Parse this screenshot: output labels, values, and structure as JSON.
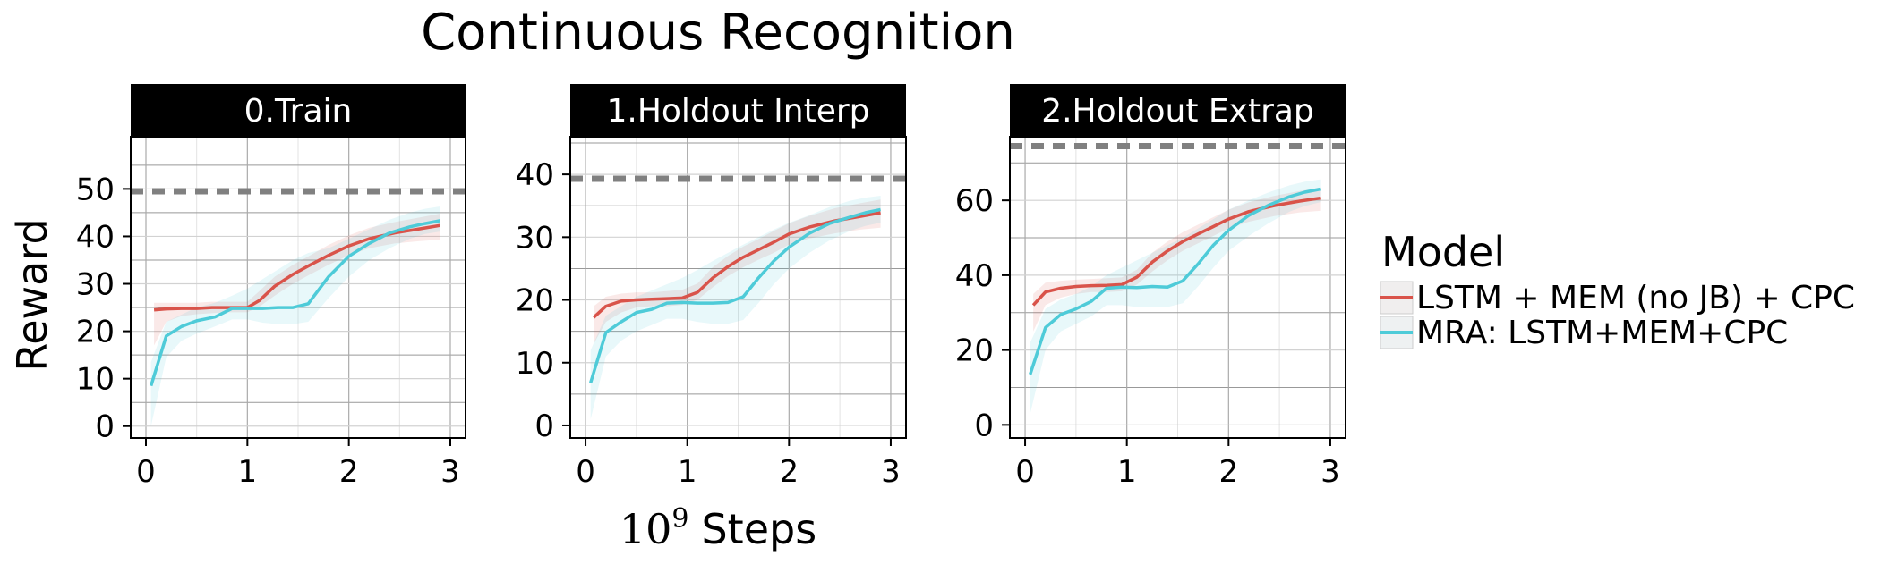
{
  "title": "Continuous Recognition",
  "xlabel_base": "10",
  "xlabel_exp": "9",
  "xlabel_rest": "Steps",
  "ylabel": "Reward",
  "legend": {
    "title": "Model",
    "entries": [
      {
        "label": "LSTM + MEM (no JB) + CPC",
        "color": "#d9534a"
      },
      {
        "label": "MRA: LSTM+MEM+CPC",
        "color": "#4ecbd8"
      }
    ]
  },
  "chart_data": [
    {
      "type": "line",
      "panel_title": "0.Train",
      "xlim": [
        -0.15,
        3.15
      ],
      "ylim": [
        -2.5,
        61
      ],
      "xticks": [
        0,
        1,
        2,
        3
      ],
      "yticks": [
        0,
        10,
        20,
        30,
        40,
        50
      ],
      "reference_line": 49.5,
      "series": [
        {
          "name": "LSTM + MEM (no JB) + CPC",
          "x": [
            0.08,
            0.2,
            0.35,
            0.5,
            0.65,
            0.8,
            1.0,
            1.12,
            1.27,
            1.45,
            1.62,
            1.8,
            2.0,
            2.2,
            2.45,
            2.7,
            2.9
          ],
          "y": [
            24.5,
            24.7,
            24.8,
            24.8,
            25.0,
            25.0,
            25.0,
            26.5,
            29.5,
            32.0,
            34.0,
            36.0,
            38.0,
            39.5,
            40.7,
            41.6,
            42.3
          ],
          "lower": [
            17,
            22,
            23.2,
            23.6,
            23.8,
            24,
            24,
            25.2,
            27.5,
            30,
            32,
            34,
            36,
            37.5,
            38.5,
            39,
            39.3
          ],
          "upper": [
            26,
            26,
            26,
            26,
            26.2,
            26.2,
            26.2,
            28.5,
            31.5,
            34,
            36,
            38.2,
            40.2,
            41.8,
            43,
            44,
            44.8
          ]
        },
        {
          "name": "MRA: LSTM+MEM+CPC",
          "x": [
            0.05,
            0.2,
            0.35,
            0.5,
            0.68,
            0.85,
            1.0,
            1.15,
            1.3,
            1.45,
            1.6,
            1.8,
            2.0,
            2.2,
            2.4,
            2.6,
            2.75,
            2.9
          ],
          "y": [
            8.5,
            19.0,
            21.0,
            22.2,
            23.0,
            24.8,
            24.8,
            24.8,
            25.0,
            25.0,
            25.8,
            31.5,
            35.8,
            38.5,
            40.7,
            42.0,
            42.7,
            43.3
          ],
          "lower": [
            0,
            14.5,
            18,
            19.5,
            21,
            22.5,
            22.5,
            21.8,
            21.5,
            21.5,
            22,
            27,
            31.5,
            35,
            37.5,
            39.5,
            40.5,
            41
          ],
          "upper": [
            13.5,
            22,
            23.5,
            25,
            26,
            27.5,
            29,
            31,
            33,
            35,
            36.5,
            37.5,
            39.5,
            41.5,
            43.5,
            45,
            45.8,
            46.3
          ]
        }
      ]
    },
    {
      "type": "line",
      "panel_title": "1.Holdout Interp",
      "xlim": [
        -0.15,
        3.15
      ],
      "ylim": [
        -2,
        46
      ],
      "xticks": [
        0,
        1,
        2,
        3
      ],
      "yticks": [
        0,
        10,
        20,
        30,
        40
      ],
      "reference_line": 39.3,
      "series": [
        {
          "name": "LSTM + MEM (no JB) + CPC",
          "x": [
            0.08,
            0.2,
            0.35,
            0.5,
            0.65,
            0.8,
            0.95,
            1.1,
            1.25,
            1.4,
            1.55,
            1.7,
            1.85,
            2.0,
            2.2,
            2.45,
            2.7,
            2.9
          ],
          "y": [
            17.2,
            19.0,
            19.8,
            20.0,
            20.1,
            20.2,
            20.3,
            21.2,
            23.5,
            25.3,
            26.8,
            28.0,
            29.2,
            30.5,
            31.6,
            32.6,
            33.3,
            33.9
          ],
          "lower": [
            13,
            16.5,
            18,
            18.8,
            19,
            19,
            19.2,
            20,
            22,
            23.8,
            25.2,
            26.4,
            27.5,
            28.8,
            29.8,
            30.6,
            31.2,
            31.5
          ],
          "upper": [
            19,
            20.5,
            21,
            21.2,
            21.2,
            21.4,
            21.6,
            22.6,
            25.2,
            27,
            28.5,
            29.7,
            31,
            32.2,
            33.4,
            34.6,
            35.4,
            36
          ]
        },
        {
          "name": "MRA: LSTM+MEM+CPC",
          "x": [
            0.05,
            0.2,
            0.35,
            0.5,
            0.65,
            0.8,
            0.95,
            1.1,
            1.25,
            1.4,
            1.55,
            1.7,
            1.85,
            2.0,
            2.2,
            2.4,
            2.6,
            2.75,
            2.9
          ],
          "y": [
            6.8,
            14.8,
            16.5,
            18.0,
            18.5,
            19.5,
            19.6,
            19.5,
            19.5,
            19.6,
            20.5,
            23.5,
            26.2,
            28.4,
            30.6,
            32.2,
            33.2,
            33.9,
            34.4
          ],
          "lower": [
            1,
            11,
            13.5,
            15,
            16,
            17,
            17,
            16.5,
            16.2,
            16.2,
            16.8,
            19.5,
            22.5,
            25,
            27.5,
            29.5,
            31,
            31.8,
            32.3
          ],
          "upper": [
            12,
            17.5,
            19,
            20.5,
            21.5,
            22.5,
            23.5,
            24.8,
            26.2,
            27.5,
            28.8,
            30,
            31.2,
            32.3,
            33.5,
            34.8,
            35.8,
            36.3,
            36.6
          ]
        }
      ]
    },
    {
      "type": "line",
      "panel_title": "2.Holdout Extrap",
      "xlim": [
        -0.15,
        3.15
      ],
      "ylim": [
        -3.5,
        77
      ],
      "xticks": [
        0,
        1,
        2,
        3
      ],
      "yticks": [
        0,
        20,
        40,
        60
      ],
      "reference_line": 74.5,
      "series": [
        {
          "name": "LSTM + MEM (no JB) + CPC",
          "x": [
            0.08,
            0.2,
            0.35,
            0.5,
            0.65,
            0.8,
            0.95,
            1.1,
            1.25,
            1.4,
            1.55,
            1.7,
            1.85,
            2.0,
            2.2,
            2.45,
            2.7,
            2.9
          ],
          "y": [
            32.0,
            35.5,
            36.5,
            37.0,
            37.2,
            37.3,
            37.5,
            39.5,
            43.5,
            46.5,
            49.0,
            51.0,
            53.0,
            55.0,
            57.0,
            58.6,
            59.8,
            60.6
          ],
          "lower": [
            25,
            32,
            34,
            35,
            35.5,
            35.5,
            35.7,
            37.5,
            41,
            44,
            46.5,
            48.5,
            50.5,
            52.5,
            54.3,
            55.8,
            56.8,
            57.2
          ],
          "upper": [
            35,
            38,
            38.5,
            38.8,
            39,
            39.2,
            39.4,
            41.5,
            46,
            49,
            51.5,
            53.5,
            55.5,
            57.5,
            59.5,
            61.2,
            62.5,
            63.4
          ]
        },
        {
          "name": "MRA: LSTM+MEM+CPC",
          "x": [
            0.05,
            0.2,
            0.35,
            0.5,
            0.65,
            0.8,
            0.95,
            1.1,
            1.25,
            1.4,
            1.55,
            1.7,
            1.85,
            2.0,
            2.2,
            2.4,
            2.6,
            2.75,
            2.9
          ],
          "y": [
            13.5,
            26.0,
            29.5,
            31.0,
            33.0,
            36.5,
            36.8,
            36.7,
            37.0,
            36.8,
            38.5,
            43.0,
            48.0,
            52.0,
            56.0,
            58.8,
            61.0,
            62.2,
            63.0
          ],
          "lower": [
            3,
            20,
            25,
            27,
            29,
            32,
            32,
            31.5,
            31.5,
            31.5,
            32.5,
            37,
            42,
            46.5,
            50.5,
            54,
            57,
            58.5,
            59.5
          ],
          "upper": [
            22,
            31,
            33.5,
            35,
            37,
            40,
            42,
            44,
            46,
            48,
            50,
            52.5,
            55,
            57.5,
            60,
            62.2,
            64,
            65,
            65.6
          ]
        }
      ]
    }
  ]
}
